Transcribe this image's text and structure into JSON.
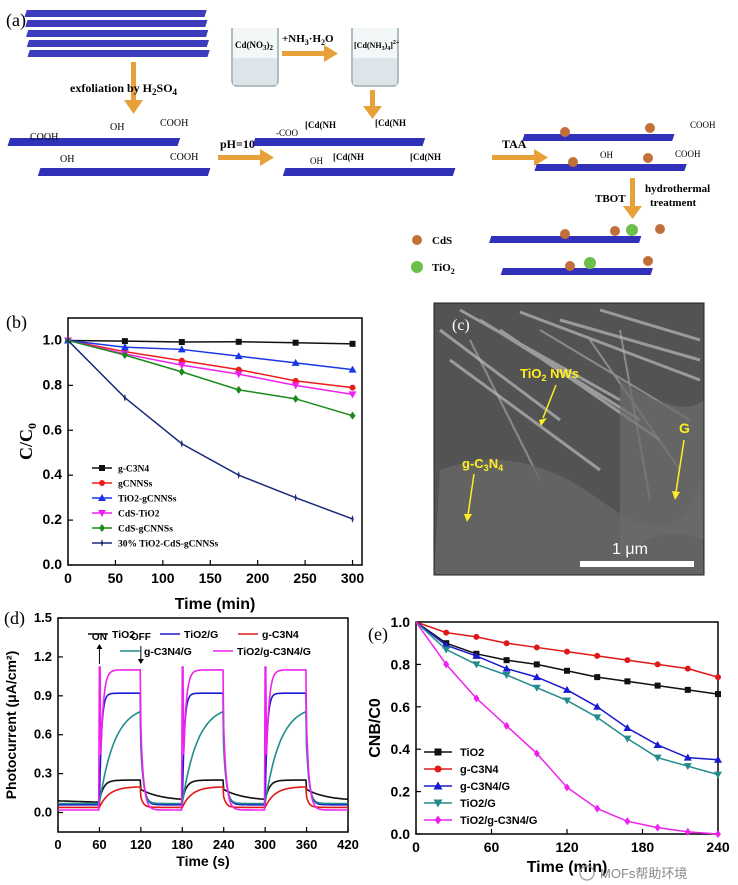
{
  "panel_a": {
    "label": "(a)",
    "step_exfoliation": "exfoliation by H",
    "step_exfoliation_sub": "2",
    "step_exfoliation_tail": "SO",
    "step_exfoliation_sub2": "4",
    "beaker1": "Cd(NO",
    "beaker1_sub": "3",
    "beaker1_tail": ")",
    "beaker1_sub2": "2",
    "reagent": "+NH",
    "reagent_sub": "3",
    "reagent_tail": "·H",
    "reagent_sub2": "2",
    "reagent_tail2": "O",
    "beaker2": "[Cd(NH",
    "beaker2_sub": "3",
    "beaker2_tail": ")",
    "beaker2_sub2": "4",
    "beaker2_sup": "]",
    "beaker2_charge": "2+",
    "ph_label": "pH=10",
    "taa_label": "TAA",
    "tbot_label": "TBOT",
    "hydro_label1": "hydrothermal",
    "hydro_label2": "treatment",
    "group_cooh": "COOH",
    "group_oh": "OH",
    "group_coo": "-COO",
    "complex": "[Cd(NH",
    "legend_cds": "CdS",
    "legend_tio2": "TiO",
    "legend_tio2_sub": "2",
    "colors": {
      "sheet": "#1a1ab0",
      "arrow": "#e8a13a",
      "cds": "#c2703a",
      "tio2": "#6cc04a"
    }
  },
  "panel_c": {
    "label": "(c)",
    "label_tio2": "TiO",
    "label_tio2_sub": "2",
    "label_tio2_tail": " NWs",
    "label_gc3n4": "g-C",
    "label_gc3n4_sub1": "3",
    "label_gc3n4_mid": "N",
    "label_gc3n4_sub2": "4",
    "label_g": "G",
    "scale_bar": "1 μm"
  },
  "watermark": "MOFs帮助环境",
  "chart_data": [
    {
      "panel": "(b)",
      "type": "line",
      "xlabel": "Time (min)",
      "ylabel": "C/C0",
      "xlim": [
        0,
        310
      ],
      "ylim": [
        0.0,
        1.1
      ],
      "xticks": [
        0,
        50,
        100,
        150,
        200,
        250,
        300
      ],
      "yticks": [
        0.0,
        0.2,
        0.4,
        0.6,
        0.8,
        1.0
      ],
      "legend_position": "bottom-left",
      "x": [
        0,
        60,
        120,
        180,
        240,
        300
      ],
      "series": [
        {
          "name": "g-C3N4",
          "color": "#111111",
          "marker": "square",
          "values": [
            1.0,
            0.997,
            0.993,
            0.994,
            0.99,
            0.985
          ]
        },
        {
          "name": "gCNNSs",
          "color": "#ee1c1c",
          "marker": "circle",
          "values": [
            1.0,
            0.95,
            0.91,
            0.87,
            0.82,
            0.79
          ]
        },
        {
          "name": "TiO2-gCNNSs",
          "color": "#1a36e8",
          "marker": "triangle-up",
          "values": [
            1.0,
            0.97,
            0.96,
            0.93,
            0.9,
            0.87
          ]
        },
        {
          "name": "CdS-TiO2",
          "color": "#ee22ee",
          "marker": "triangle-down",
          "values": [
            1.0,
            0.94,
            0.89,
            0.85,
            0.8,
            0.76
          ]
        },
        {
          "name": "CdS-gCNNSs",
          "color": "#1a8a1a",
          "marker": "diamond",
          "values": [
            1.0,
            0.935,
            0.86,
            0.78,
            0.74,
            0.665
          ]
        },
        {
          "name": "30% TiO2-CdS-gCNNSs",
          "color": "#1a2a7a",
          "marker": "star",
          "values": [
            1.0,
            0.745,
            0.54,
            0.4,
            0.3,
            0.205
          ]
        }
      ]
    },
    {
      "panel": "(d)",
      "type": "line",
      "xlabel": "Time (s)",
      "ylabel": "Photocurrent (μA/cm²)",
      "xlim": [
        0,
        420
      ],
      "ylim": [
        -0.15,
        1.5
      ],
      "xticks": [
        0,
        60,
        120,
        180,
        240,
        300,
        360,
        420
      ],
      "yticks": [
        0.0,
        0.3,
        0.6,
        0.9,
        1.2,
        1.5
      ],
      "on_label": "ON",
      "off_label": "OFF",
      "legend_position": "top",
      "light_on": [
        [
          60,
          120
        ],
        [
          180,
          240
        ],
        [
          300,
          360
        ]
      ],
      "series": [
        {
          "name": "TiO2",
          "color": "#111111",
          "dark": 0.09,
          "light": 0.25
        },
        {
          "name": "TiO2/G",
          "color": "#1a1ad0",
          "dark": 0.06,
          "light": 0.92
        },
        {
          "name": "g-C3N4",
          "color": "#e01818",
          "dark": 0.04,
          "light": 0.2
        },
        {
          "name": "g-C3N4/G",
          "color": "#228b8b",
          "dark": 0.07,
          "light": 0.83
        },
        {
          "name": "TiO2/g-C3N4/G",
          "color": "#ee22ee",
          "dark": 0.02,
          "light": 1.1
        }
      ]
    },
    {
      "panel": "(e)",
      "type": "line",
      "xlabel": "Time (min)",
      "ylabel": "CNB/C0",
      "xlim": [
        0,
        200
      ],
      "ylim": [
        0.0,
        1.0
      ],
      "xticks": [
        0,
        60,
        120,
        180,
        240
      ],
      "yticks": [
        0.0,
        0.2,
        0.4,
        0.6,
        0.8,
        1.0
      ],
      "legend_position": "bottom-left",
      "x": [
        0,
        20,
        40,
        60,
        80,
        100,
        120,
        140,
        160,
        180,
        200
      ],
      "series": [
        {
          "name": "TiO2",
          "color": "#111111",
          "marker": "square",
          "values": [
            1.0,
            0.9,
            0.85,
            0.82,
            0.8,
            0.77,
            0.74,
            0.72,
            0.7,
            0.68,
            0.66
          ]
        },
        {
          "name": "g-C3N4",
          "color": "#e01818",
          "marker": "circle",
          "values": [
            1.0,
            0.95,
            0.93,
            0.9,
            0.88,
            0.86,
            0.84,
            0.82,
            0.8,
            0.78,
            0.74
          ]
        },
        {
          "name": "g-C3N4/G",
          "color": "#1a1ad0",
          "marker": "triangle-up",
          "values": [
            1.0,
            0.89,
            0.84,
            0.78,
            0.74,
            0.68,
            0.6,
            0.5,
            0.42,
            0.36,
            0.35
          ]
        },
        {
          "name": "TiO2/G",
          "color": "#228b8b",
          "marker": "triangle-down",
          "values": [
            1.0,
            0.87,
            0.8,
            0.75,
            0.69,
            0.63,
            0.55,
            0.45,
            0.36,
            0.32,
            0.28
          ]
        },
        {
          "name": "TiO2/g-C3N4/G",
          "color": "#ee22ee",
          "marker": "diamond",
          "values": [
            1.0,
            0.8,
            0.64,
            0.51,
            0.38,
            0.22,
            0.12,
            0.06,
            0.03,
            0.01,
            0.0
          ]
        }
      ]
    }
  ]
}
